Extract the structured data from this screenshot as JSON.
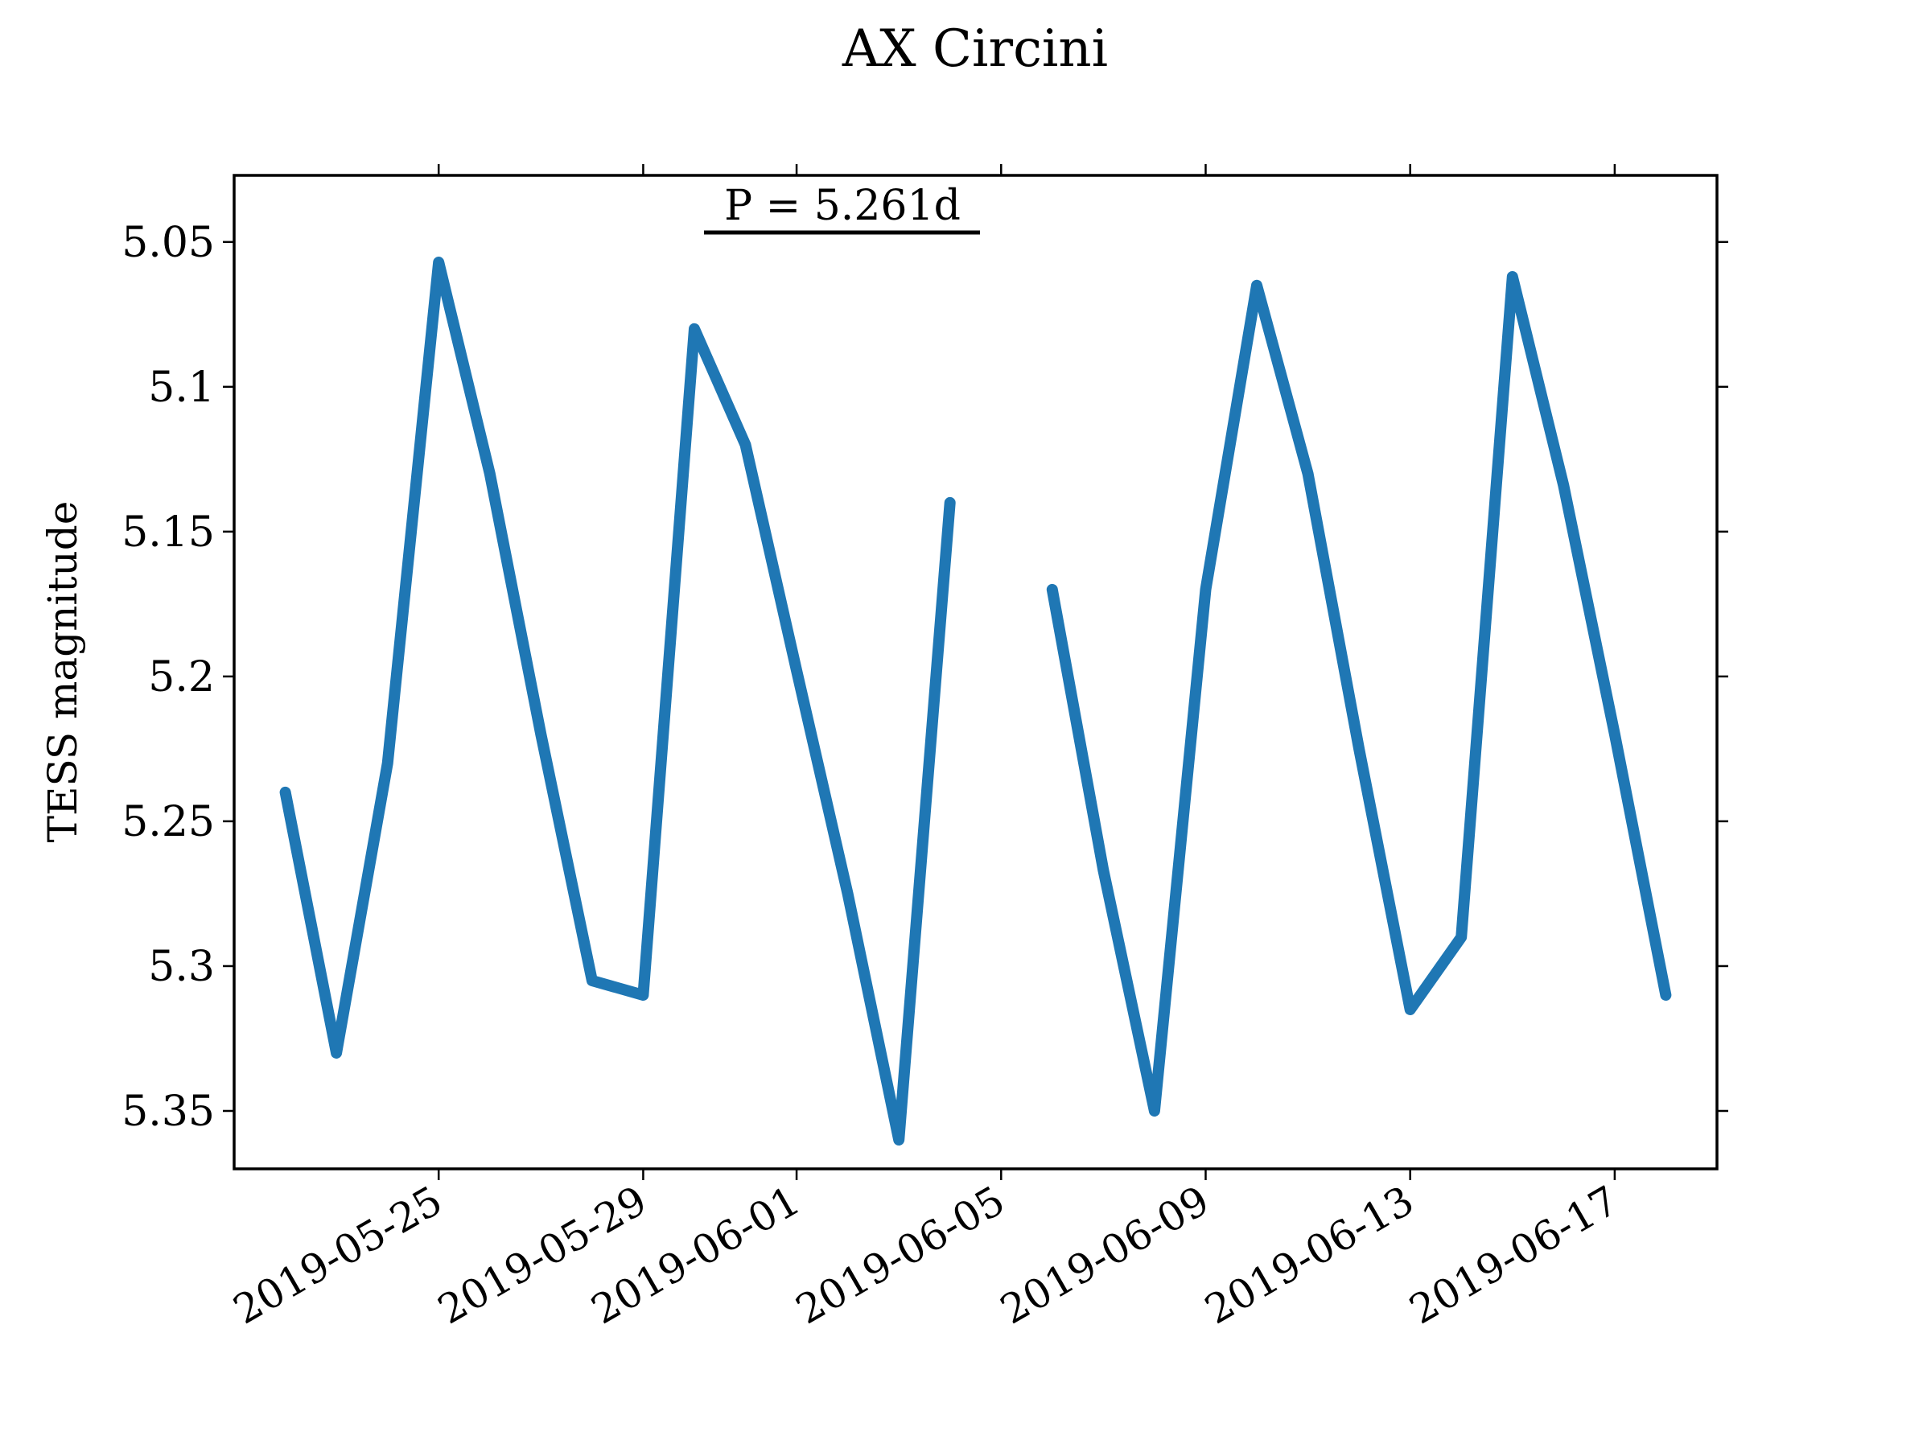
{
  "chart_data": {
    "type": "line",
    "title": "AX Circini",
    "ylabel": "TESS magnitude",
    "annotation": "P = 5.261d",
    "x": [
      "2019-05-22",
      "2019-05-23",
      "2019-05-24",
      "2019-05-25",
      "2019-05-26",
      "2019-05-27",
      "2019-05-28",
      "2019-05-29",
      "2019-05-30",
      "2019-05-31",
      "2019-06-01",
      "2019-06-02",
      "2019-06-03",
      "2019-06-04",
      "2019-06-05",
      "2019-06-06",
      "2019-06-07",
      "2019-06-08",
      "2019-06-09",
      "2019-06-10",
      "2019-06-11",
      "2019-06-12",
      "2019-06-13",
      "2019-06-14",
      "2019-06-15",
      "2019-06-16",
      "2019-06-17",
      "2019-06-18"
    ],
    "series": [
      {
        "name": "AX Cir",
        "color": "#1f77b4",
        "values": [
          5.24,
          5.33,
          5.23,
          5.057,
          5.13,
          5.22,
          5.305,
          5.31,
          5.08,
          5.12,
          5.198,
          5.275,
          5.36,
          5.14,
          null,
          5.17,
          5.267,
          5.35,
          5.17,
          5.065,
          5.13,
          5.225,
          5.315,
          5.29,
          5.062,
          5.134,
          5.22,
          5.31
        ]
      }
    ],
    "xlim": [
      "2019-05-21",
      "2019-06-19"
    ],
    "xticks": [
      "2019-05-25",
      "2019-05-29",
      "2019-06-01",
      "2019-06-05",
      "2019-06-09",
      "2019-06-13",
      "2019-06-17"
    ],
    "ylim": [
      5.37,
      5.027
    ],
    "yticks": [
      5.05,
      5.1,
      5.15,
      5.2,
      5.25,
      5.3,
      5.35
    ],
    "grid": false
  }
}
